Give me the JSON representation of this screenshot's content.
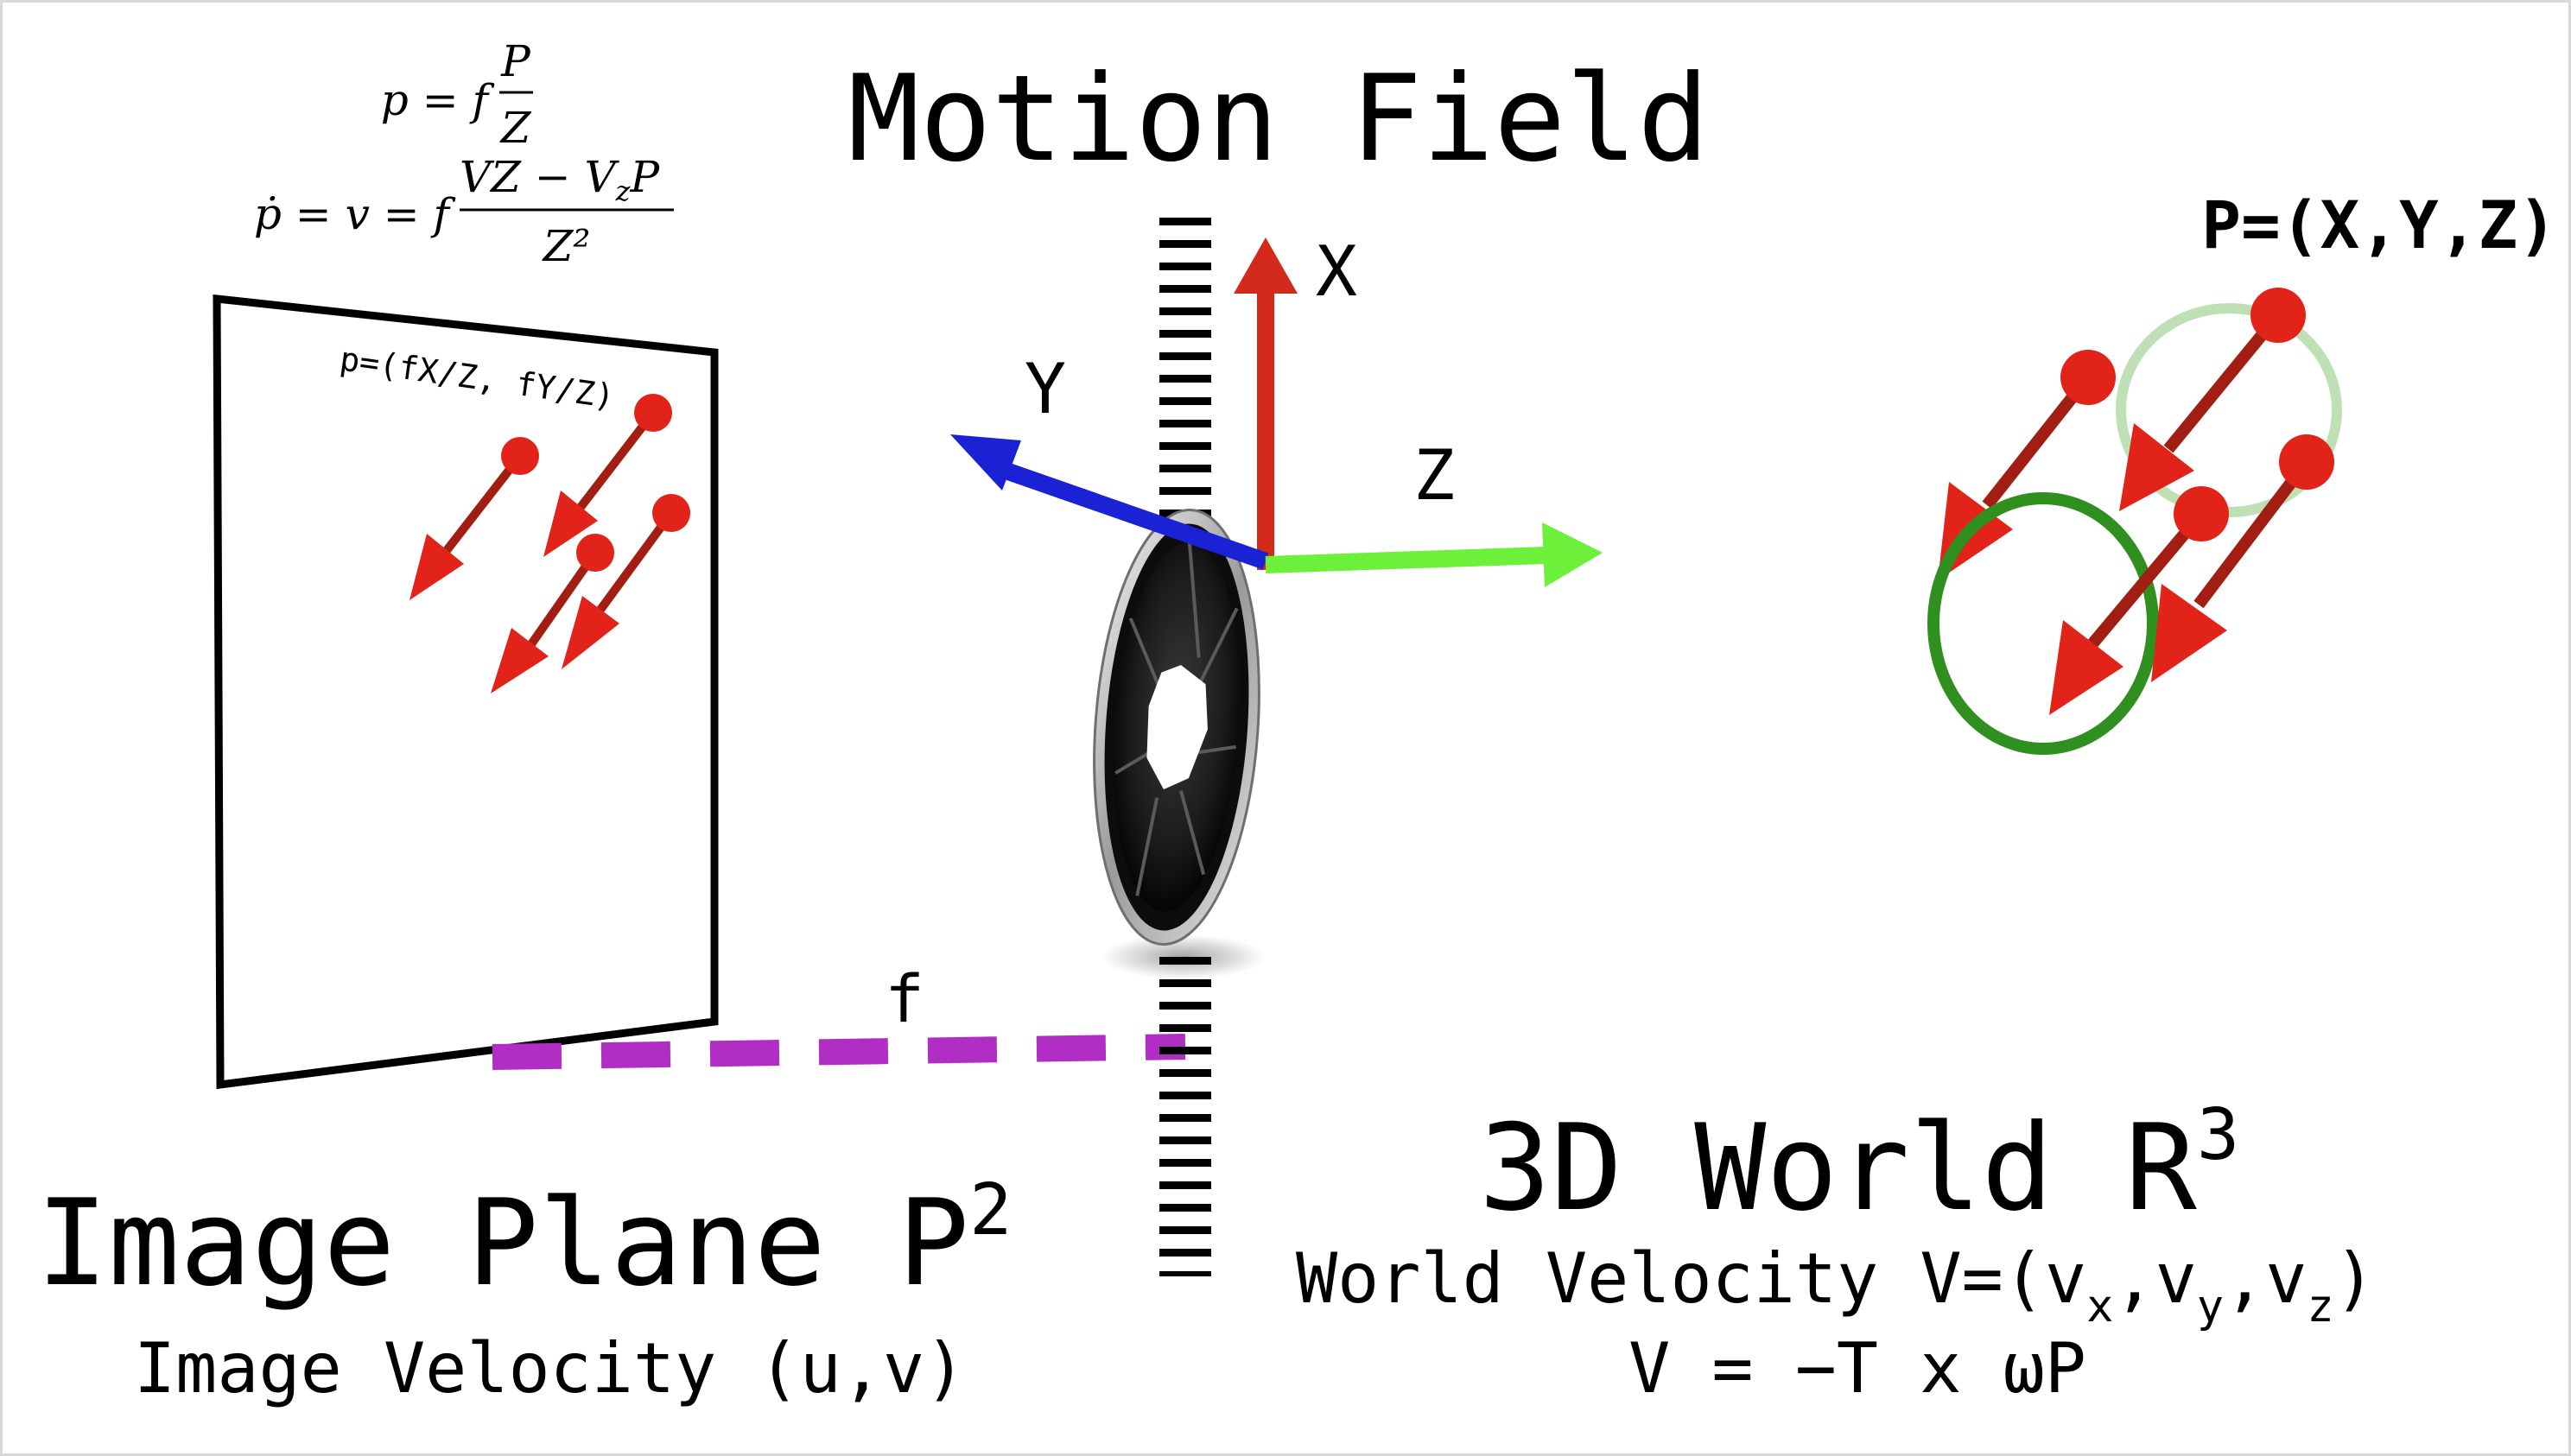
{
  "title": "Motion Field",
  "equations": {
    "eq1": {
      "lhs": "p = f",
      "num": "P",
      "den": "Z"
    },
    "eq2": {
      "lhs": "ṗ = v = f",
      "num": "VZ − V",
      "num_sub": "z",
      "num_tail": "P",
      "den": "Z²"
    }
  },
  "image_plane": {
    "point_label": "p=(fX/Z, fY/Z)",
    "title": "Image Plane P",
    "title_sup": "2",
    "subtitle": "Image Velocity (u,v)"
  },
  "focal_label": "f",
  "axes": {
    "x": "X",
    "y": "Y",
    "z": "Z"
  },
  "world": {
    "point_label": "P=(X,Y,Z)",
    "title": "3D World R",
    "title_sup": "3",
    "velocity_prefix": "World Velocity V=(v",
    "vx_sub": "x",
    "vy_sub": "y",
    "vz_sub": "z",
    "velocity_close": ")",
    "formula": "V = −T x ωP"
  },
  "colors": {
    "motion_vector": "#e2231a",
    "vector_shaft": "#a31e12",
    "axis_x": "#d42a1c",
    "axis_y": "#1b22d6",
    "axis_z": "#6df03a",
    "focal_dash": "#b02ec4",
    "circle_near": "#2f8f1f",
    "circle_far": "#bfe0b5"
  },
  "icons": [
    "camera-aperture-icon"
  ]
}
